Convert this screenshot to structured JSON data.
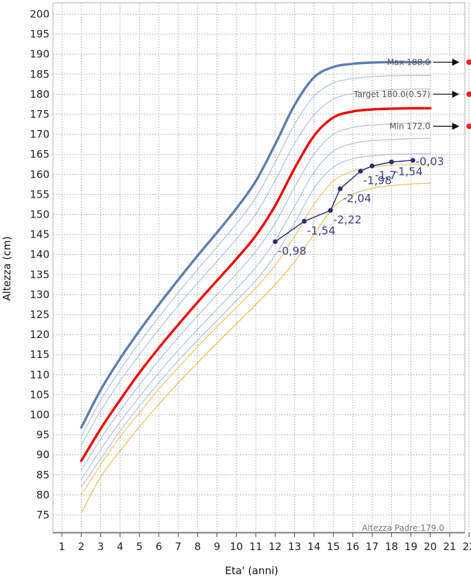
{
  "chart_data": {
    "type": "line",
    "xlabel": "Eta' (anni)",
    "ylabel": "Altezza (cm)",
    "xlim": [
      1,
      22
    ],
    "ylim": [
      71,
      202
    ],
    "xticks": [
      1,
      2,
      3,
      4,
      5,
      6,
      7,
      8,
      9,
      10,
      11,
      12,
      13,
      14,
      15,
      16,
      17,
      18,
      19,
      20,
      21,
      22
    ],
    "yticks": [
      75,
      80,
      85,
      90,
      95,
      100,
      105,
      110,
      115,
      120,
      125,
      130,
      135,
      140,
      145,
      150,
      155,
      160,
      165,
      170,
      175,
      180,
      185,
      190,
      195,
      200
    ],
    "grid": true,
    "x": [
      2,
      3,
      4,
      5,
      6,
      7,
      8,
      9,
      10,
      11,
      12,
      13,
      14,
      15,
      16,
      17,
      18,
      19,
      20
    ],
    "percentile_curves": [
      {
        "role": "upper",
        "color": "#5b7fae",
        "values": [
          96.8,
          106.2,
          114.0,
          121.0,
          127.5,
          133.7,
          139.7,
          145.5,
          151.5,
          158.3,
          167.5,
          177.3,
          184.2,
          186.8,
          187.6,
          187.9,
          188.0,
          188.0,
          188.0
        ]
      },
      {
        "role": "ref",
        "color": "#a8c0dc",
        "values": [
          94.6,
          103.6,
          111.2,
          118.0,
          124.4,
          130.5,
          136.3,
          141.9,
          147.7,
          154.2,
          163.0,
          172.5,
          179.5,
          182.8,
          183.9,
          184.4,
          184.6,
          184.7,
          184.7
        ]
      },
      {
        "role": "ref",
        "color": "#a8c0dc",
        "values": [
          92.4,
          101.0,
          108.4,
          115.0,
          121.3,
          127.3,
          132.9,
          138.3,
          143.9,
          150.1,
          158.5,
          167.7,
          174.8,
          178.8,
          180.2,
          180.8,
          181.1,
          181.3,
          181.3
        ]
      },
      {
        "role": "target",
        "color": "#ee0000",
        "values": [
          88.5,
          96.5,
          103.7,
          110.5,
          116.7,
          122.5,
          128.1,
          133.5,
          138.9,
          144.7,
          152.2,
          161.5,
          169.6,
          174.2,
          175.7,
          176.2,
          176.4,
          176.5,
          176.5
        ]
      },
      {
        "role": "ref",
        "color": "#a8c0dc",
        "values": [
          86.2,
          94.0,
          101.0,
          107.5,
          113.6,
          119.3,
          124.7,
          130.0,
          135.2,
          140.8,
          147.8,
          156.8,
          165.0,
          170.0,
          171.7,
          172.3,
          172.6,
          172.8,
          172.8
        ]
      },
      {
        "role": "ref",
        "color": "#a8c0dc",
        "values": [
          83.8,
          91.3,
          98.2,
          104.5,
          110.5,
          116.1,
          121.3,
          126.4,
          131.4,
          136.8,
          143.5,
          152.0,
          160.5,
          165.8,
          167.7,
          168.4,
          168.7,
          168.9,
          169.0
        ]
      },
      {
        "role": "ref",
        "color": "#a8c0dc",
        "values": [
          82.0,
          89.0,
          96.0,
          102.2,
          108.0,
          113.5,
          118.6,
          123.5,
          128.5,
          133.5,
          139.8,
          147.8,
          156.5,
          161.8,
          163.9,
          164.6,
          165.0,
          165.1,
          165.2
        ]
      },
      {
        "role": "ref",
        "color": "#f0c060",
        "values": [
          80.0,
          87.5,
          94.5,
          100.5,
          106.4,
          111.8,
          117.0,
          122.0,
          126.8,
          131.7,
          137.3,
          144.5,
          152.5,
          158.3,
          160.8,
          161.8,
          162.3,
          162.5,
          162.6
        ]
      },
      {
        "role": "ref",
        "color": "#e9b84c",
        "values": [
          75.5,
          84.5,
          91.0,
          97.0,
          102.6,
          108.0,
          113.0,
          117.9,
          122.7,
          127.5,
          132.5,
          138.2,
          145.0,
          151.8,
          155.0,
          156.5,
          157.2,
          157.6,
          157.8
        ]
      }
    ],
    "measurements": {
      "color": "#2b2d6e",
      "points": [
        {
          "x": 12.0,
          "y": 143.2,
          "label": "-0,98"
        },
        {
          "x": 13.5,
          "y": 148.3,
          "label": "-1,54"
        },
        {
          "x": 14.85,
          "y": 151.0,
          "label": "-2,22"
        },
        {
          "x": 15.35,
          "y": 156.4,
          "label": "-2,04"
        },
        {
          "x": 16.4,
          "y": 160.8,
          "label": "-1,98"
        },
        {
          "x": 17.0,
          "y": 162.1,
          "label": "-1,7"
        },
        {
          "x": 18.0,
          "y": 163.1,
          "label": "-1,54"
        },
        {
          "x": 19.1,
          "y": 163.5,
          "label": "-0,03"
        }
      ]
    },
    "annotations": [
      {
        "text": "Max 188.0",
        "y": 188.0,
        "text_end_x": 20.0
      },
      {
        "text": "Target 180.0(0.57)",
        "y": 180.0,
        "text_end_x": 20.0
      },
      {
        "text": "Min 172.0",
        "y": 172.0,
        "text_end_x": 20.0
      }
    ],
    "footer": "Altezza Padre:179.0",
    "colors": {
      "grid": "#b4b4b4",
      "axis": "#444444",
      "arrow": "#111111",
      "endpoint": "#ee2222"
    }
  }
}
